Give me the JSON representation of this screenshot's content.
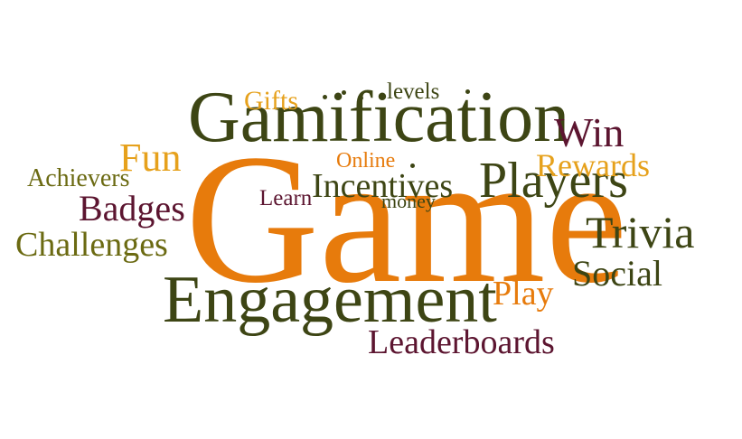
{
  "colors": {
    "dark_olive": "#3d4514",
    "olive": "#6b6a12",
    "maroon": "#5c1530",
    "orange": "#e77b0c",
    "gold": "#e6a11c"
  },
  "words": {
    "game": "Game",
    "gamification": "Gamification",
    "engagement": "Engagement",
    "players": "Players",
    "trivia": "Trivia",
    "win": "Win",
    "rewards": "Rewards",
    "incentives": "Incentives",
    "badges": "Badges",
    "challenges": "Challenges",
    "leaderboards": "Leaderboards",
    "social": "Social",
    "play": "Play",
    "fun": "Fun",
    "achievers": "Achievers",
    "gifts": "Gifts",
    "levels": "levels",
    "online": "Online",
    "learn": "Learn",
    "money": "money"
  }
}
